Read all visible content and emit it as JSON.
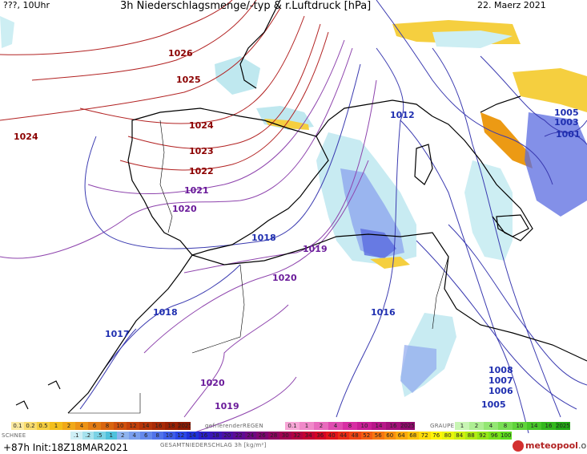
{
  "header": {
    "left": "???, 10Uhr",
    "title": "3h Niederschlagsmenge/-typ & r.Luftdruck [hPa]",
    "date": "22. Maerz 2021"
  },
  "isobars": [
    {
      "label": "1026",
      "style": "red"
    },
    {
      "label": "1025",
      "style": "red"
    },
    {
      "label": "1024",
      "style": "red"
    },
    {
      "label": "1024",
      "style": "red"
    },
    {
      "label": "1023",
      "style": "red"
    },
    {
      "label": "1022",
      "style": "red"
    },
    {
      "label": "1021",
      "style": "purple"
    },
    {
      "label": "1020",
      "style": "purple"
    },
    {
      "label": "1018",
      "style": "blue"
    },
    {
      "label": "1019",
      "style": "purple"
    },
    {
      "label": "1020",
      "style": "purple"
    },
    {
      "label": "1018",
      "style": "blue"
    },
    {
      "label": "1017",
      "style": "blue"
    },
    {
      "label": "1016",
      "style": "blue"
    },
    {
      "label": "1020",
      "style": "purple"
    },
    {
      "label": "1019",
      "style": "purple"
    },
    {
      "label": "1012",
      "style": "blue"
    },
    {
      "label": "1005",
      "style": "blue"
    },
    {
      "label": "1003",
      "style": "blue"
    },
    {
      "label": "1001",
      "style": "blue"
    },
    {
      "label": "1008",
      "style": "blue"
    },
    {
      "label": "1007",
      "style": "blue"
    },
    {
      "label": "1006",
      "style": "blue"
    },
    {
      "label": "1005",
      "style": "blue"
    }
  ],
  "legend": {
    "regen_label": "gefrierenderREGEN",
    "graupel_label": "GRAUPEL",
    "schnee_label": "SCHNEE",
    "total_label": "GESAMTNIEDERSCHLAG 3h [kg/m²]",
    "rain_values": [
      "0.1",
      "0.2",
      "0.5",
      "1",
      "2",
      "4",
      "6",
      "8",
      "10",
      "12",
      "14",
      "16",
      "18",
      "2025+"
    ],
    "freezing_values": [
      "0.1",
      "1",
      "2",
      "4",
      "8",
      "10",
      "14",
      "16",
      "2025+"
    ],
    "graupel_values": [
      "1",
      "2",
      "4",
      "8",
      "10",
      "14",
      "16",
      "2025+"
    ],
    "snow_values": [
      ".1",
      ".2",
      ".5",
      "1",
      "2",
      "4",
      "6",
      "8",
      "10",
      "12",
      "14",
      "16",
      "18",
      "20",
      "22",
      "24",
      "26",
      "28",
      "30",
      "32",
      "34",
      "36",
      "40",
      "44",
      "48",
      "52",
      "56",
      "60",
      "64",
      "68",
      "72",
      "76",
      "80",
      "84",
      "88",
      "92",
      "96",
      "100"
    ],
    "rain_colors": [
      "#fbe9a0",
      "#f9dc6e",
      "#f5ce3f",
      "#f3bf1b",
      "#f0a818",
      "#ec9214",
      "#e27b12",
      "#d9650f",
      "#cf500d",
      "#c4410b",
      "#b53409",
      "#a82a07",
      "#9b2105",
      "#8e1a03"
    ],
    "freezing_colors": [
      "#f7a6d6",
      "#f089c9",
      "#e86bbd",
      "#df4bb0",
      "#d72ea3",
      "#c91f96",
      "#b81789",
      "#a5107b",
      "#930a6e"
    ],
    "graupel_colors": [
      "#c8f5b4",
      "#aeee93",
      "#93e673",
      "#78de53",
      "#5fd33a",
      "#47c629",
      "#33b71d",
      "#22a714"
    ],
    "snow_colors": [
      "#cfeff6",
      "#a6e2ee",
      "#7ad2e5",
      "#4fc1dc",
      "#8fb4ef",
      "#7a9fee",
      "#6589ec",
      "#5173ea",
      "#3d5de8",
      "#2a47e6",
      "#1f31d9",
      "#2a1fc8",
      "#3b16b6",
      "#4c0fa4",
      "#5d0a93",
      "#6e0782",
      "#7f0571",
      "#900361",
      "#a10251",
      "#b20141",
      "#c30132",
      "#d40424",
      "#e2151a",
      "#ea2c16",
      "#f04514",
      "#f45e12",
      "#f77710",
      "#f9900e",
      "#fbaa0c",
      "#fcc30a",
      "#fddc08",
      "#fef507",
      "#e9f50b",
      "#cdf00f",
      "#b1eb13",
      "#95e617",
      "#79e11b",
      "#5ddc1f"
    ]
  },
  "footer": {
    "init": "+87h  Init:18Z18MAR2021",
    "brand": "meteopool",
    "brand_suffix": ".org"
  }
}
